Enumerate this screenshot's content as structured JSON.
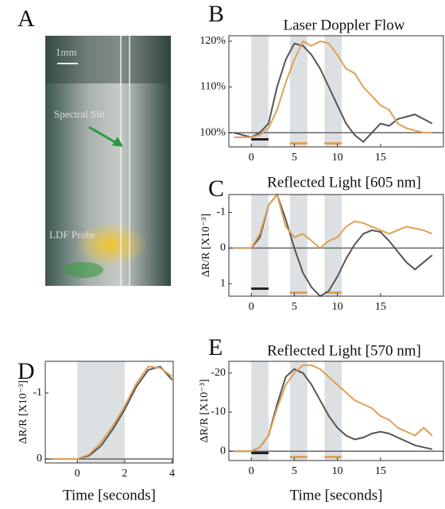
{
  "chart_data": [
    {
      "type": "image",
      "panel_label": "A",
      "annotations": [
        "1mm",
        "Spectral Slit",
        "LDF Probe"
      ]
    },
    {
      "type": "line",
      "panel_label": "B",
      "title": "Laser Doppler Flow",
      "x": [
        -2,
        -1,
        0,
        1,
        2,
        3,
        4,
        5,
        6,
        7,
        8,
        9,
        10,
        11,
        12,
        13,
        14,
        15,
        16,
        17,
        18,
        19,
        20,
        21
      ],
      "series": [
        {
          "color": "#555555",
          "values": [
            100,
            99.5,
            99,
            100,
            102,
            110,
            116,
            119.5,
            119,
            117,
            114,
            110,
            106,
            102,
            99.5,
            98,
            100,
            102,
            101.5,
            103,
            103.5,
            104,
            103,
            102
          ]
        },
        {
          "color": "#e0a055",
          "values": [
            99,
            99,
            99,
            99.5,
            101,
            105,
            111,
            116,
            120,
            119,
            120,
            119.5,
            117,
            114,
            113,
            110,
            108,
            106,
            105,
            102,
            101,
            100.5,
            100,
            100
          ]
        }
      ],
      "xlim": [
        -2.6,
        22.3
      ],
      "ylim": [
        96.9,
        121.2
      ],
      "xticks": [
        0,
        5,
        10,
        15
      ],
      "yticks": [
        {
          "value": 100,
          "label": "100%"
        },
        {
          "value": 110,
          "label": "110%"
        },
        {
          "value": 120,
          "label": "120%"
        }
      ],
      "reference": 100,
      "shaded_regions": [
        [
          0,
          2
        ],
        [
          4.5,
          6.5
        ],
        [
          8.5,
          10.5
        ]
      ],
      "region_colors": [
        "#222222",
        "#e0a055",
        "#e0a055"
      ]
    },
    {
      "type": "line",
      "panel_label": "C",
      "title": "Reflected Light [605 nm]",
      "ylabel": "ΔR/R [X10⁻³]",
      "x": [
        -2,
        -1,
        0,
        1,
        2,
        3,
        4,
        5,
        6,
        7,
        8,
        9,
        10,
        11,
        12,
        13,
        14,
        15,
        16,
        17,
        18,
        19,
        20,
        21
      ],
      "series": [
        {
          "color": "#555555",
          "values": [
            0,
            0,
            0,
            -0.3,
            -1.2,
            -1.5,
            -0.8,
            0,
            0.7,
            1.1,
            1.35,
            1.2,
            0.8,
            0.3,
            -0.1,
            -0.4,
            -0.5,
            -0.45,
            -0.2,
            0.1,
            0.4,
            0.6,
            0.4,
            0.2
          ]
        },
        {
          "color": "#e0a055",
          "values": [
            0,
            0,
            0,
            -0.4,
            -1.2,
            -1.5,
            -0.6,
            -0.3,
            -0.4,
            -0.2,
            0,
            -0.2,
            -0.3,
            -0.6,
            -0.75,
            -0.7,
            -0.6,
            -0.5,
            -0.4,
            -0.5,
            -0.6,
            -0.55,
            -0.5,
            -0.4
          ]
        }
      ],
      "xlim": [
        -2.6,
        22.3
      ],
      "ylim": [
        1.35,
        -1.5
      ],
      "xticks": [
        0,
        5,
        10,
        15
      ],
      "yticks": [
        -1,
        0,
        1
      ],
      "reference": 0,
      "shaded_regions": [
        [
          0,
          2
        ],
        [
          4.5,
          6.5
        ],
        [
          8.5,
          10.5
        ]
      ],
      "region_colors": [
        "#222222",
        "#e0a055",
        "#e0a055"
      ]
    },
    {
      "type": "line",
      "panel_label": "D",
      "ylabel": "ΔR/R [X10⁻³]",
      "xlabel": "Time [seconds]",
      "x": [
        -1,
        -0.5,
        0,
        0.5,
        1,
        1.5,
        2,
        2.5,
        3,
        3.5,
        4
      ],
      "series": [
        {
          "color": "#555555",
          "values": [
            0,
            0,
            0,
            -0.05,
            -0.2,
            -0.45,
            -0.75,
            -1.1,
            -1.35,
            -1.4,
            -1.2
          ]
        },
        {
          "color": "#e0a055",
          "values": [
            0,
            0,
            0,
            -0.07,
            -0.25,
            -0.5,
            -0.8,
            -1.15,
            -1.4,
            -1.38,
            -1.25
          ]
        }
      ],
      "xlim": [
        -1.35,
        4.05
      ],
      "ylim": [
        0.06,
        -1.48
      ],
      "xticks": [
        0,
        2,
        4
      ],
      "yticks": [
        -1,
        0
      ],
      "reference": 0,
      "shaded_regions": [
        [
          0,
          2
        ]
      ],
      "region_colors": []
    },
    {
      "type": "line",
      "panel_label": "E",
      "title": "Reflected Light [570 nm]",
      "ylabel": "ΔR/R [X10⁻³]",
      "xlabel": "Time [seconds]",
      "x": [
        -2,
        -1,
        0,
        1,
        2,
        3,
        4,
        5,
        6,
        7,
        8,
        9,
        10,
        11,
        12,
        13,
        14,
        15,
        16,
        17,
        18,
        19,
        20,
        21
      ],
      "series": [
        {
          "color": "#555555",
          "values": [
            0,
            0,
            0,
            -1,
            -4,
            -12,
            -19,
            -21,
            -20,
            -17,
            -13,
            -9,
            -6,
            -4,
            -3,
            -3.5,
            -4.5,
            -5,
            -4.5,
            -3.5,
            -2.5,
            -1.5,
            -1,
            -0.5
          ]
        },
        {
          "color": "#e0a055",
          "values": [
            0,
            0,
            0,
            -1,
            -4,
            -11,
            -17,
            -20,
            -22,
            -22,
            -21,
            -19,
            -17,
            -15,
            -13,
            -12,
            -11,
            -9,
            -8,
            -6,
            -5,
            -4,
            -6,
            -4
          ]
        }
      ],
      "xlim": [
        -2.6,
        22.3
      ],
      "ylim": [
        2.4,
        -23
      ],
      "xticks": [
        0,
        5,
        10,
        15
      ],
      "yticks": [
        -20,
        -10,
        0
      ],
      "reference": 0,
      "shaded_regions": [
        [
          0,
          2
        ],
        [
          4.5,
          6.5
        ],
        [
          8.5,
          10.5
        ]
      ],
      "region_colors": [
        "#222222",
        "#e0a055",
        "#e0a055"
      ]
    }
  ]
}
